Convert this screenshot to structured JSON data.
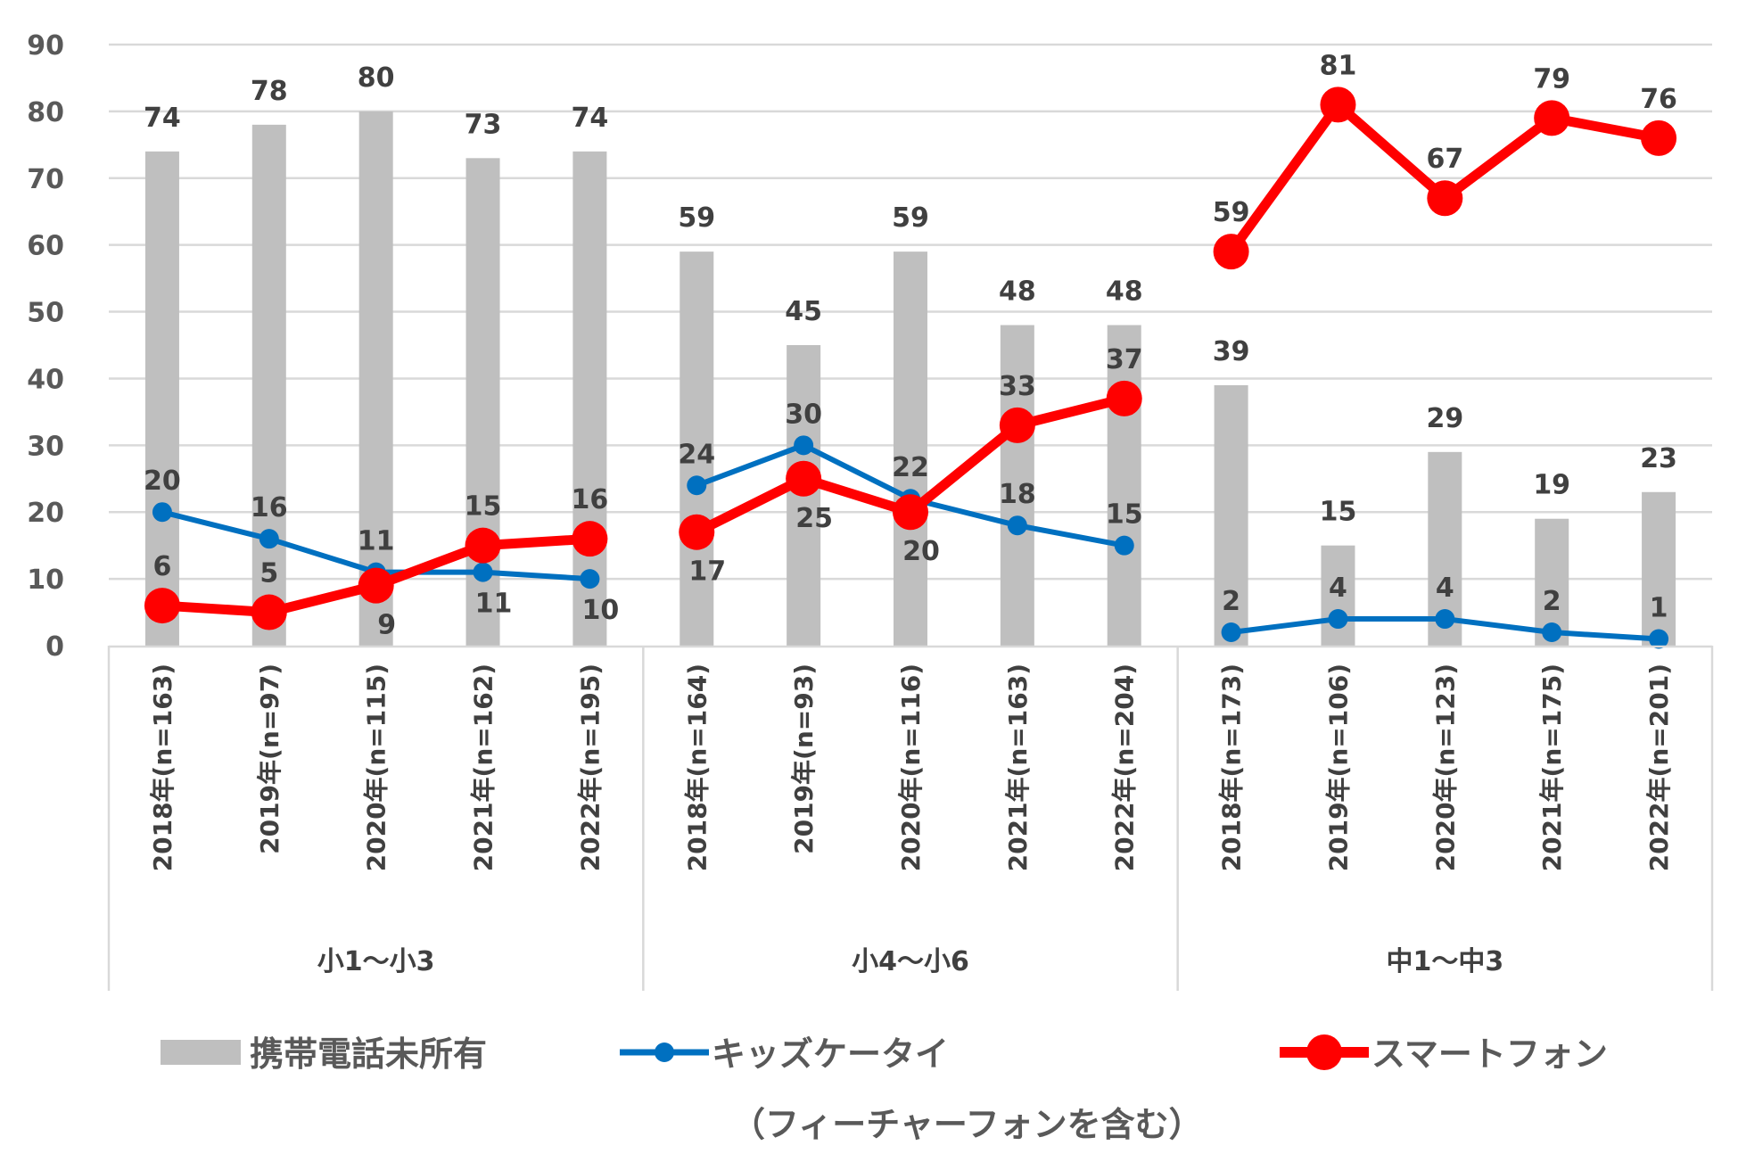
{
  "chart_data": {
    "type": "bar+line",
    "title": "",
    "xlabel": "",
    "ylabel": "",
    "ylim": [
      0,
      90
    ],
    "yticks": [
      0,
      10,
      20,
      30,
      40,
      50,
      60,
      70,
      80,
      90
    ],
    "grid": true,
    "legend_position": "bottom",
    "groups": [
      {
        "label": "小1～小3",
        "categories": [
          "2018年(n=163)",
          "2019年(n=97)",
          "2020年(n=115)",
          "2021年(n=162)",
          "2022年(n=195)"
        ]
      },
      {
        "label": "小4～小6",
        "categories": [
          "2018年(n=164)",
          "2019年(n=93)",
          "2020年(n=116)",
          "2021年(n=163)",
          "2022年(n=204)"
        ]
      },
      {
        "label": "中1～中3",
        "categories": [
          "2018年(n=173)",
          "2019年(n=106)",
          "2020年(n=123)",
          "2021年(n=175)",
          "2022年(n=201)"
        ]
      }
    ],
    "series": [
      {
        "name": "携帯電話未所有",
        "type": "bar",
        "color": "#bfbfbf",
        "values": [
          74,
          78,
          80,
          73,
          74,
          59,
          45,
          59,
          48,
          48,
          39,
          15,
          29,
          19,
          23
        ]
      },
      {
        "name": "キッズケータイ",
        "name_line2": "（フィーチャーフォンを含む）",
        "type": "line",
        "color": "#0070c0",
        "values": [
          20,
          16,
          11,
          11,
          10,
          24,
          30,
          22,
          18,
          15,
          2,
          4,
          4,
          2,
          1
        ]
      },
      {
        "name": "スマートフォン",
        "type": "line",
        "color": "#ff0000",
        "values": [
          6,
          5,
          9,
          15,
          16,
          17,
          25,
          20,
          33,
          37,
          59,
          81,
          67,
          79,
          76
        ],
        "gaps_between_groups": true
      }
    ]
  }
}
